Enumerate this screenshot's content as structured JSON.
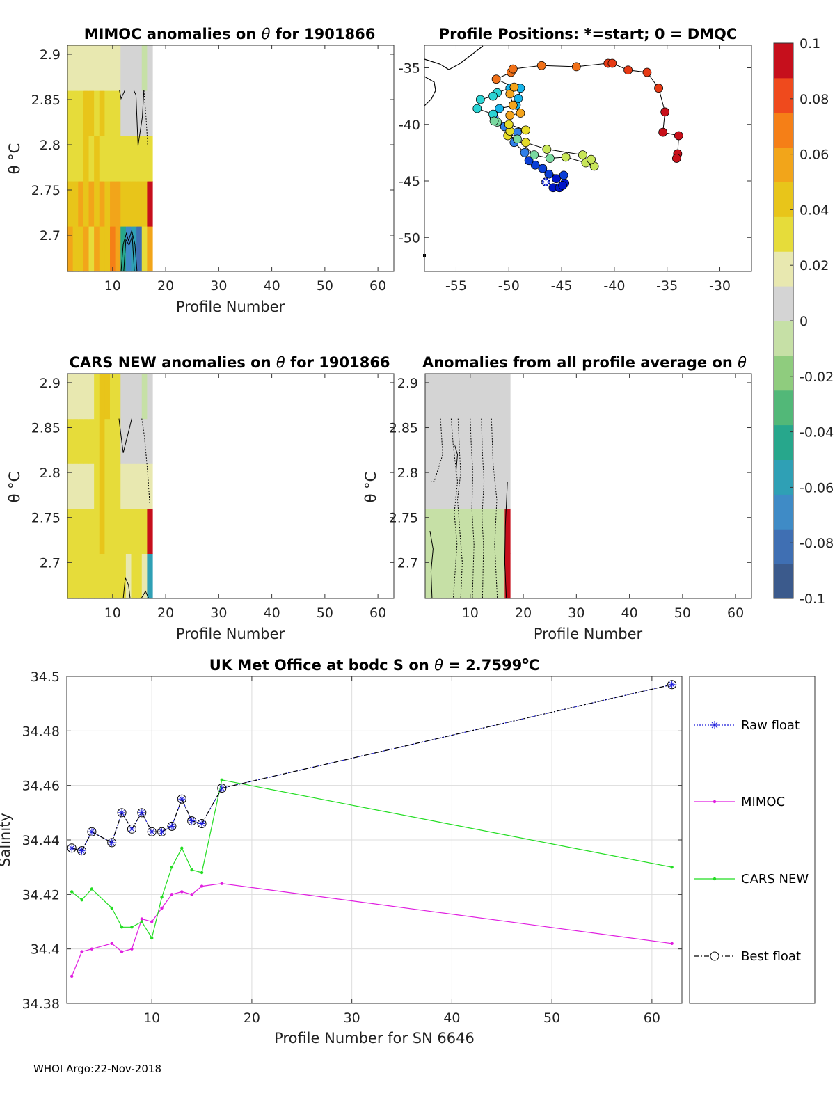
{
  "footer": "WHOI Argo:22-Nov-2018",
  "colors": {
    "colormap": [
      "#3b5a8c",
      "#3f6fb3",
      "#3f8bc6",
      "#2fa0b5",
      "#27a78c",
      "#52b878",
      "#8fcc7e",
      "#c6e0a6",
      "#d4d4d4",
      "#e8e8b0",
      "#e6dc3a",
      "#e8c51a",
      "#f2a51a",
      "#f57f17",
      "#ef4a1d",
      "#c60f1c"
    ],
    "raw": "#1a1adb",
    "mimoc": "#e01ee0",
    "cars": "#22dd22",
    "best": "#000000",
    "track": [
      "#0015c8",
      "#0a3fd6",
      "#2f7fe8",
      "#17b4ea",
      "#2ad4d4",
      "#7ad9a0",
      "#c8e659",
      "#e6dc28",
      "#f4a41c",
      "#f07018",
      "#e63a15",
      "#c8101a"
    ]
  },
  "chart_data": [
    {
      "id": "mimoc",
      "type": "heatmap",
      "title": "MIMOC anomalies on θ  for 1901866",
      "title_parts": [
        "MIMOC anomalies on ",
        "θ",
        "  for 1901866"
      ],
      "xlabel": "Profile Number",
      "ylabel": "θ °C",
      "xlim": [
        1.5,
        63
      ],
      "ylim": [
        2.66,
        2.91
      ],
      "xticks": [
        10,
        20,
        30,
        40,
        50,
        60
      ],
      "yticks": [
        2.7,
        2.75,
        2.8,
        2.85,
        2.9
      ],
      "ytick_labels": [
        "2.7",
        "2.75",
        "2.8",
        "2.85",
        "2.9"
      ],
      "columns": [
        2,
        3,
        4,
        5,
        6,
        7,
        8,
        9,
        10,
        11,
        12,
        13,
        14,
        15,
        16,
        17
      ],
      "rows": [
        2.66,
        2.71,
        2.76,
        2.81,
        2.86,
        2.91
      ],
      "values": [
        [
          0.05,
          0.045,
          0.04,
          0.055,
          0.035,
          0.06,
          0.04,
          0.045,
          0.065,
          0.05,
          -0.05,
          -0.07,
          -0.06,
          -0.08,
          0.03,
          0.06
        ],
        [
          0.045,
          0.04,
          0.05,
          0.045,
          0.06,
          0.045,
          0.055,
          0.045,
          0.05,
          0.05,
          0.045,
          0.04,
          0.045,
          0.045,
          0.04,
          0.095
        ],
        [
          0.032,
          0.032,
          0.034,
          0.04,
          0.032,
          0.04,
          0.032,
          0.034,
          0.034,
          0.036,
          0.034,
          0.032,
          0.032,
          0.03,
          0.03,
          0.028
        ],
        [
          0.036,
          0.034,
          0.034,
          0.04,
          0.038,
          0.035,
          0.038,
          0.036,
          0.036,
          0.035,
          0.012,
          0.012,
          0.012,
          0.01,
          0.012,
          0.01
        ],
        [
          0.02,
          0.02,
          0.022,
          0.02,
          0.018,
          0.02,
          0.02,
          0.022,
          0.02,
          0.02,
          0.008,
          0.008,
          0.008,
          0.006,
          -0.012,
          0.008
        ]
      ]
    },
    {
      "id": "positions",
      "type": "scatter",
      "title": "Profile Positions: *=start; 0 = DMQC",
      "xlim": [
        -58,
        -27
      ],
      "ylim": [
        -53,
        -33
      ],
      "xticks": [
        -55,
        -50,
        -45,
        -40,
        -35,
        -30
      ],
      "yticks": [
        -35,
        -40,
        -45,
        -50
      ],
      "lon": [
        -46.5,
        -45.8,
        -45.2,
        -44.7,
        -44.9,
        -45.5,
        -44.8,
        -46.2,
        -46.8,
        -47.5,
        -48.1,
        -48.5,
        -49.5,
        -49.2,
        -50.4,
        -51.4,
        -50.9,
        -49.3,
        -49.1,
        -48.9,
        -49.9,
        -51.1,
        -51.5,
        -52.7,
        -53.0,
        -51.5,
        -51.1,
        -51.4,
        -49.2,
        -47.6,
        -46.1,
        -44.6,
        -42.7,
        -41.9,
        -42.2,
        -43.0,
        -46.4,
        -48.4,
        -50.1,
        -49.9,
        -48.4,
        -50.0,
        -49.9,
        -48.9,
        -49.6,
        -49.9,
        -49.5,
        -51.2,
        -49.8,
        -49.6,
        -46.9,
        -43.6,
        -40.6,
        -40.2,
        -38.7,
        -36.9,
        -35.8,
        -35.2,
        -35.4,
        -33.9,
        -34.0,
        -34.1
      ],
      "lat": [
        -45.1,
        -45.6,
        -45.6,
        -45.2,
        -45.4,
        -44.8,
        -44.5,
        -44.4,
        -43.9,
        -43.6,
        -43.2,
        -42.5,
        -41.6,
        -40.7,
        -40.2,
        -39.4,
        -38.6,
        -38.3,
        -37.7,
        -36.8,
        -36.8,
        -37.2,
        -37.5,
        -37.8,
        -38.6,
        -39.1,
        -39.8,
        -39.7,
        -41.3,
        -42.7,
        -43.0,
        -42.9,
        -43.4,
        -43.7,
        -43.1,
        -42.7,
        -42.2,
        -41.6,
        -41.0,
        -40.6,
        -40.5,
        -40.0,
        -39.2,
        -39.0,
        -38.3,
        -37.3,
        -36.7,
        -36.0,
        -35.4,
        -35.1,
        -34.8,
        -34.9,
        -34.6,
        -34.6,
        -35.2,
        -35.4,
        -36.8,
        -38.9,
        -40.7,
        -41.0,
        -42.6,
        -43.0
      ],
      "start": [
        -46.5,
        -45.1
      ]
    },
    {
      "id": "cars",
      "type": "heatmap",
      "title": "CARS NEW anomalies on θ for 1901866",
      "title_parts": [
        "CARS NEW anomalies on ",
        "θ",
        " for 1901866"
      ],
      "xlabel": "",
      "ylabel": "θ °C",
      "xlim": [
        1.5,
        63
      ],
      "ylim": [
        2.66,
        2.91
      ],
      "xticks": [
        10,
        20,
        30,
        40,
        50,
        60
      ],
      "yticks": [
        2.7,
        2.75,
        2.8,
        2.85,
        2.9
      ],
      "ytick_labels": [
        "2.7",
        "2.75",
        "2.8",
        "2.85",
        "2.9"
      ],
      "columns": [
        2,
        3,
        4,
        5,
        6,
        7,
        8,
        9,
        10,
        11,
        12,
        13,
        14,
        15,
        16,
        17
      ],
      "rows": [
        2.66,
        2.71,
        2.76,
        2.81,
        2.86,
        2.91
      ],
      "values": [
        [
          0.03,
          0.03,
          0.028,
          0.032,
          0.03,
          0.035,
          0.03,
          0.032,
          0.035,
          0.03,
          0.026,
          0.024,
          0.026,
          0.028,
          0.022,
          -0.055
        ],
        [
          0.028,
          0.03,
          0.032,
          0.03,
          0.035,
          0.032,
          0.04,
          0.036,
          0.034,
          0.032,
          0.032,
          0.03,
          0.03,
          0.032,
          0.03,
          0.095
        ],
        [
          0.02,
          0.018,
          0.02,
          0.024,
          0.02,
          0.026,
          0.04,
          0.03,
          0.028,
          0.03,
          0.02,
          0.016,
          0.018,
          0.02,
          0.018,
          0.016
        ],
        [
          0.03,
          0.028,
          0.028,
          0.03,
          0.032,
          0.03,
          0.038,
          0.035,
          0.03,
          0.03,
          0.006,
          0.006,
          0.006,
          0.004,
          0.008,
          0.006
        ],
        [
          0.018,
          0.02,
          0.02,
          0.018,
          0.022,
          0.026,
          0.04,
          0.038,
          0.03,
          0.028,
          0.008,
          0.006,
          0.006,
          0.006,
          -0.01,
          0.008
        ]
      ]
    },
    {
      "id": "allavg",
      "type": "heatmap",
      "title": "Anomalies from all profile average on θ",
      "title_parts": [
        "Anomalies from all profile average on ",
        "θ",
        ""
      ],
      "xlabel": "Profile Number",
      "ylabel": "θ °C",
      "xlim": [
        1.5,
        63
      ],
      "ylim": [
        2.66,
        2.91
      ],
      "xticks": [
        10,
        20,
        30,
        40,
        50,
        60
      ],
      "yticks": [
        2.7,
        2.75,
        2.8,
        2.85,
        2.9
      ],
      "ytick_labels": [
        "2.7",
        "2.75",
        "2.8",
        "2.85",
        "2.9"
      ],
      "columns": [
        2,
        3,
        4,
        5,
        6,
        7,
        8,
        9,
        10,
        11,
        12,
        13,
        14,
        15,
        16,
        17
      ],
      "rows": [
        2.66,
        2.71,
        2.76,
        2.81,
        2.86,
        2.91
      ],
      "values": [
        [
          -0.008,
          -0.006,
          -0.004,
          -0.006,
          -0.004,
          -0.002,
          -0.004,
          -0.006,
          -0.01,
          -0.006,
          -0.004,
          -0.006,
          -0.004,
          -0.006,
          -0.008,
          0.095
        ],
        [
          -0.006,
          -0.008,
          -0.006,
          -0.004,
          -0.006,
          -0.004,
          -0.01,
          -0.012,
          -0.008,
          -0.006,
          -0.006,
          -0.004,
          -0.006,
          -0.004,
          -0.008,
          0.095
        ],
        [
          0.002,
          0.004,
          0.002,
          0.0,
          0.002,
          0.004,
          0.002,
          0.004,
          0.0,
          0.002,
          0.004,
          0.002,
          0.0,
          0.002,
          0.004,
          0.012
        ],
        [
          0.004,
          0.002,
          0.004,
          0.002,
          0.0,
          0.002,
          0.004,
          0.002,
          0.004,
          0.002,
          0.0,
          0.002,
          0.004,
          0.002,
          0.004,
          0.006
        ],
        [
          0.004,
          0.004,
          0.002,
          0.004,
          0.002,
          0.004,
          0.002,
          0.004,
          0.002,
          0.004,
          0.002,
          0.004,
          0.002,
          0.004,
          0.002,
          0.004
        ]
      ]
    },
    {
      "id": "salinity",
      "type": "line",
      "title": "UK Met Office at bodc S on θ = 2.7599°C",
      "title_parts": [
        "UK Met Office at bodc S on ",
        "θ",
        " = 2.7599",
        "o",
        "C"
      ],
      "xlabel": "Profile Number for SN 6646",
      "ylabel": "Salinity",
      "xlim": [
        1.5,
        63
      ],
      "ylim": [
        34.38,
        34.5
      ],
      "xticks": [
        10,
        20,
        30,
        40,
        50,
        60
      ],
      "yticks": [
        34.38,
        34.4,
        34.42,
        34.44,
        34.46,
        34.48,
        34.5
      ],
      "ytick_labels": [
        "34.38",
        "34.4",
        "34.42",
        "34.44",
        "34.46",
        "34.48",
        "34.5"
      ],
      "x": [
        2,
        3,
        4,
        6,
        7,
        8,
        9,
        10,
        11,
        12,
        13,
        14,
        15,
        17,
        62
      ],
      "series": [
        {
          "name": "Raw float",
          "values": [
            34.437,
            34.436,
            34.443,
            34.439,
            34.45,
            34.444,
            34.45,
            34.443,
            34.443,
            34.445,
            34.455,
            34.447,
            34.446,
            34.459,
            34.497
          ]
        },
        {
          "name": "MIMOC",
          "values": [
            34.39,
            34.399,
            34.4,
            34.402,
            34.399,
            34.4,
            34.411,
            34.41,
            34.415,
            34.42,
            34.421,
            34.42,
            34.423,
            34.424,
            34.402
          ]
        },
        {
          "name": "CARS NEW",
          "values": [
            34.421,
            34.418,
            34.422,
            34.415,
            34.408,
            34.408,
            34.41,
            34.404,
            34.419,
            34.43,
            34.437,
            34.429,
            34.428,
            34.462,
            34.43
          ]
        },
        {
          "name": "Best float",
          "values": [
            34.437,
            34.436,
            34.443,
            34.439,
            34.45,
            34.444,
            34.45,
            34.443,
            34.443,
            34.445,
            34.455,
            34.447,
            34.446,
            34.459,
            34.497
          ]
        }
      ],
      "legend": [
        "Raw float",
        "MIMOC",
        "CARS NEW",
        "Best float"
      ]
    },
    {
      "id": "colorbar",
      "type": "heatmap",
      "range": [
        -0.1,
        0.1
      ],
      "ticks": [
        0.1,
        0.08,
        0.06,
        0.04,
        0.02,
        0,
        -0.02,
        -0.04,
        -0.06,
        -0.08,
        -0.1
      ],
      "tick_labels": [
        "0.1",
        "0.08",
        "0.06",
        "0.04",
        "0.02",
        "0",
        "-0.02",
        "-0.04",
        "-0.06",
        "-0.08",
        "-0.1"
      ]
    }
  ]
}
